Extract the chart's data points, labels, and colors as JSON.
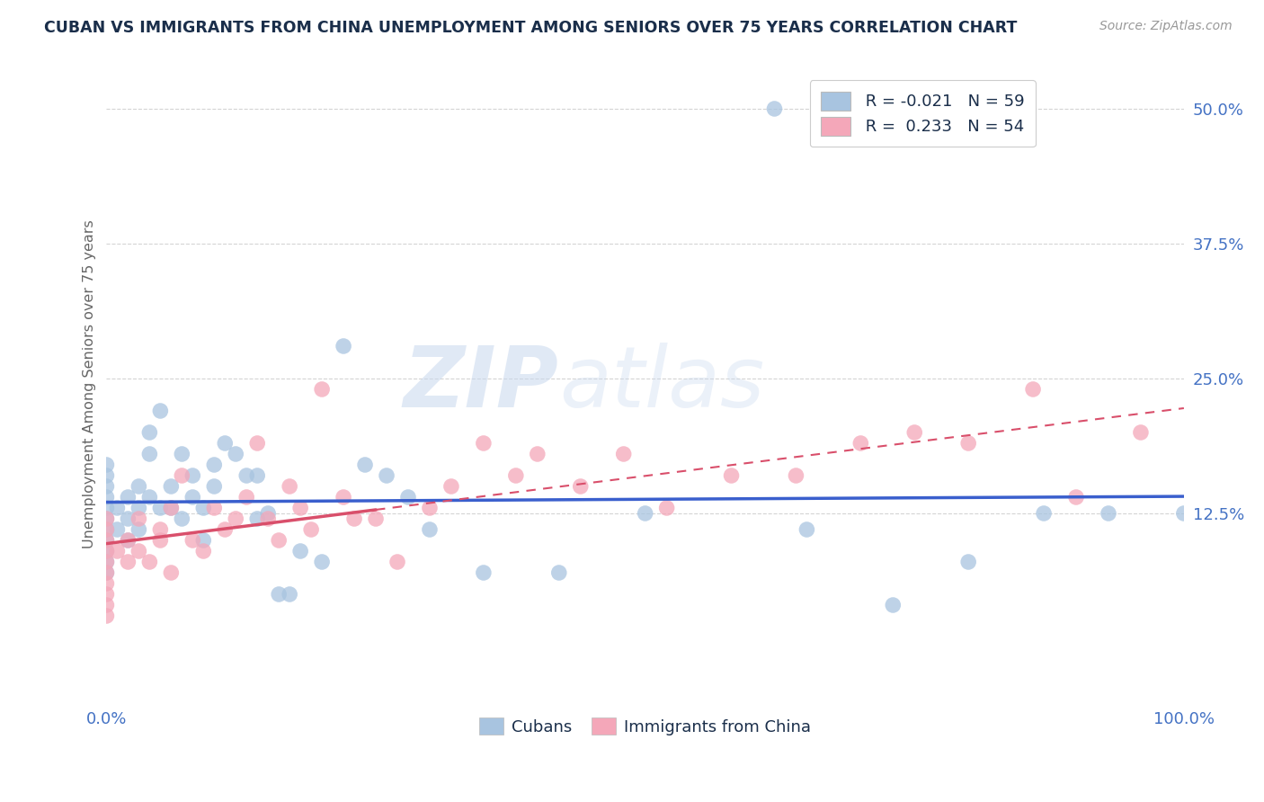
{
  "title": "CUBAN VS IMMIGRANTS FROM CHINA UNEMPLOYMENT AMONG SENIORS OVER 75 YEARS CORRELATION CHART",
  "source": "Source: ZipAtlas.com",
  "ylabel": "Unemployment Among Seniors over 75 years",
  "xlim": [
    0,
    1.0
  ],
  "ylim": [
    -0.05,
    0.54
  ],
  "legend_R_blue": "R = -0.021",
  "legend_R_pink": "R =  0.233",
  "legend_N_blue": "N = 59",
  "legend_N_pink": "N = 54",
  "blue_color": "#a8c4e0",
  "pink_color": "#f4a7b9",
  "blue_line_color": "#3a5fcd",
  "pink_line_color": "#d94f6b",
  "watermark_ZIP": "ZIP",
  "watermark_atlas": "atlas",
  "title_color": "#1a2e4a",
  "axis_label_color": "#666666",
  "tick_color": "#4472c4",
  "grid_color": "#d0d0d0",
  "cubans_x": [
    0.0,
    0.0,
    0.0,
    0.0,
    0.0,
    0.0,
    0.0,
    0.0,
    0.0,
    0.0,
    0.0,
    0.01,
    0.01,
    0.02,
    0.02,
    0.02,
    0.03,
    0.03,
    0.03,
    0.04,
    0.04,
    0.04,
    0.05,
    0.05,
    0.06,
    0.06,
    0.07,
    0.07,
    0.08,
    0.08,
    0.09,
    0.09,
    0.1,
    0.1,
    0.11,
    0.12,
    0.13,
    0.14,
    0.14,
    0.15,
    0.16,
    0.17,
    0.18,
    0.2,
    0.22,
    0.24,
    0.26,
    0.28,
    0.3,
    0.35,
    0.42,
    0.5,
    0.62,
    0.65,
    0.73,
    0.8,
    0.87,
    0.93,
    1.0
  ],
  "cubans_y": [
    0.13,
    0.14,
    0.12,
    0.11,
    0.1,
    0.09,
    0.08,
    0.07,
    0.15,
    0.16,
    0.17,
    0.13,
    0.11,
    0.14,
    0.12,
    0.1,
    0.15,
    0.13,
    0.11,
    0.14,
    0.2,
    0.18,
    0.13,
    0.22,
    0.15,
    0.13,
    0.18,
    0.12,
    0.16,
    0.14,
    0.13,
    0.1,
    0.17,
    0.15,
    0.19,
    0.18,
    0.16,
    0.16,
    0.12,
    0.125,
    0.05,
    0.05,
    0.09,
    0.08,
    0.28,
    0.17,
    0.16,
    0.14,
    0.11,
    0.07,
    0.07,
    0.125,
    0.5,
    0.11,
    0.04,
    0.08,
    0.125,
    0.125,
    0.125
  ],
  "china_x": [
    0.0,
    0.0,
    0.0,
    0.0,
    0.0,
    0.0,
    0.0,
    0.0,
    0.0,
    0.0,
    0.01,
    0.02,
    0.02,
    0.03,
    0.03,
    0.04,
    0.05,
    0.05,
    0.06,
    0.06,
    0.07,
    0.08,
    0.09,
    0.1,
    0.11,
    0.12,
    0.13,
    0.14,
    0.15,
    0.16,
    0.17,
    0.18,
    0.19,
    0.2,
    0.22,
    0.23,
    0.25,
    0.27,
    0.3,
    0.32,
    0.35,
    0.38,
    0.4,
    0.44,
    0.48,
    0.52,
    0.58,
    0.64,
    0.7,
    0.75,
    0.8,
    0.86,
    0.9,
    0.96
  ],
  "china_y": [
    0.08,
    0.09,
    0.07,
    0.06,
    0.05,
    0.1,
    0.11,
    0.12,
    0.04,
    0.03,
    0.09,
    0.1,
    0.08,
    0.09,
    0.12,
    0.08,
    0.11,
    0.1,
    0.07,
    0.13,
    0.16,
    0.1,
    0.09,
    0.13,
    0.11,
    0.12,
    0.14,
    0.19,
    0.12,
    0.1,
    0.15,
    0.13,
    0.11,
    0.24,
    0.14,
    0.12,
    0.12,
    0.08,
    0.13,
    0.15,
    0.19,
    0.16,
    0.18,
    0.15,
    0.18,
    0.13,
    0.16,
    0.16,
    0.19,
    0.2,
    0.19,
    0.24,
    0.14,
    0.2
  ]
}
